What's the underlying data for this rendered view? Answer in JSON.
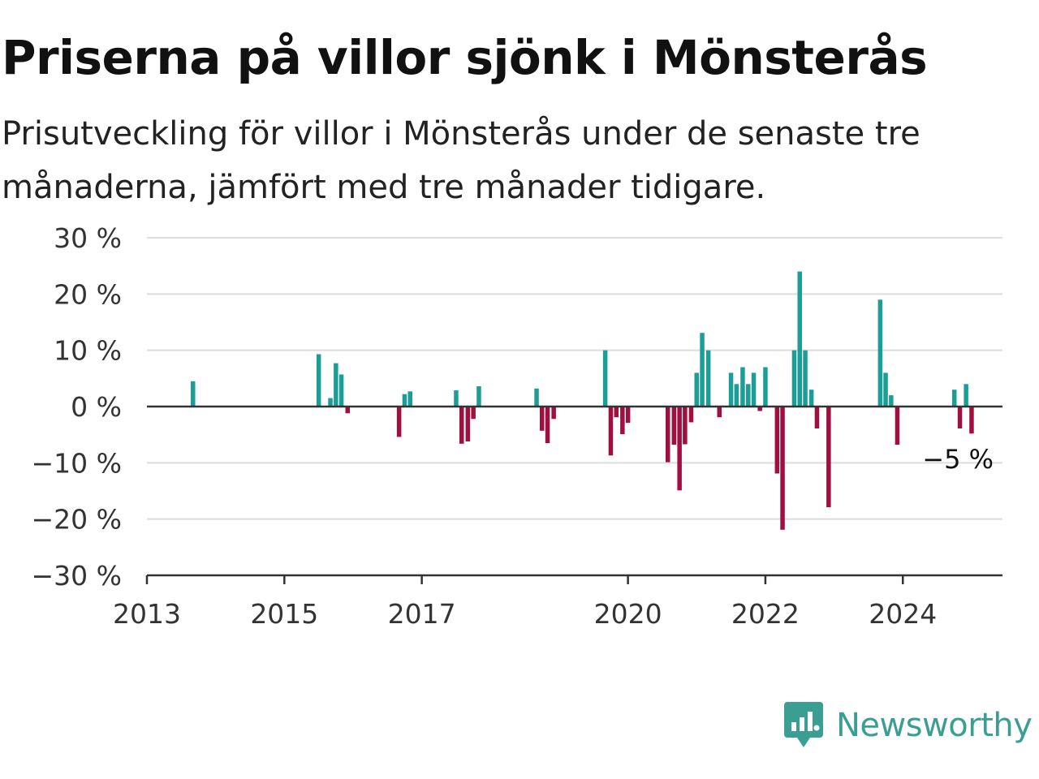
{
  "title": "Priserna på villor sjönk i Mönsterås",
  "subtitle": "Prisutveckling för villor i Mönsterås under de senaste tre månaderna, jämfört med tre månader tidigare.",
  "brand": {
    "name": "Newsworthy",
    "icon": "newsworthy-logo-icon"
  },
  "colors": {
    "positive": "#1b9e95",
    "negative": "#a0103f",
    "grid": "#dddddd",
    "axis": "#333333"
  },
  "chart_data": {
    "type": "bar",
    "title": "Priserna på villor sjönk i Mönsterås",
    "xlabel": "",
    "ylabel": "",
    "ylim": [
      -30,
      30
    ],
    "xlim": [
      2013.0,
      2025.45
    ],
    "y_ticks": [
      30,
      20,
      10,
      0,
      -10,
      -20,
      -30
    ],
    "y_tick_labels": [
      "30 %",
      "20 %",
      "10 %",
      "0 %",
      "−10 %",
      "−20 %",
      "−30 %"
    ],
    "x_ticks": [
      2013,
      2015,
      2017,
      2020,
      2022,
      2024
    ],
    "x_tick_labels": [
      "2013",
      "2015",
      "2017",
      "2020",
      "2022",
      "2024"
    ],
    "grid": true,
    "end_label": "−5 %",
    "series": [
      {
        "x": [
          2013.67,
          2015.5,
          2015.67,
          2015.75,
          2015.83,
          2015.92,
          2016.67,
          2016.75,
          2016.83,
          2017.5,
          2017.58,
          2017.67,
          2017.75,
          2017.83,
          2018.67,
          2018.75,
          2018.83,
          2018.92,
          2019.67,
          2019.75,
          2019.83,
          2019.92,
          2020.0,
          2020.58,
          2020.67,
          2020.75,
          2020.83,
          2020.92,
          2021.0,
          2021.08,
          2021.17,
          2021.33,
          2021.5,
          2021.58,
          2021.67,
          2021.75,
          2021.83,
          2021.92,
          2022.0,
          2022.17,
          2022.25,
          2022.42,
          2022.5,
          2022.58,
          2022.67,
          2022.75,
          2022.92,
          2023.67,
          2023.75,
          2023.83,
          2023.92,
          2024.75,
          2024.83,
          2024.92,
          2025.0
        ],
        "values": [
          4.5,
          9.3,
          1.5,
          7.7,
          5.7,
          -1.2,
          -5.4,
          2.2,
          2.7,
          2.9,
          -6.6,
          -6.2,
          -2.2,
          3.6,
          3.2,
          -4.3,
          -6.5,
          -2.2,
          10.0,
          -8.7,
          -1.9,
          -4.9,
          -2.9,
          -9.9,
          -6.8,
          -14.9,
          -6.7,
          -2.8,
          6.0,
          13.1,
          10.0,
          -1.9,
          6.0,
          4.0,
          7.0,
          4.0,
          6.0,
          -0.8,
          7.0,
          -11.9,
          -21.9,
          10.0,
          24.0,
          10.0,
          3.0,
          -3.9,
          -17.9,
          19.0,
          6.0,
          2.0,
          -6.8,
          3.0,
          -3.9,
          4.0,
          -4.8
        ]
      }
    ]
  }
}
